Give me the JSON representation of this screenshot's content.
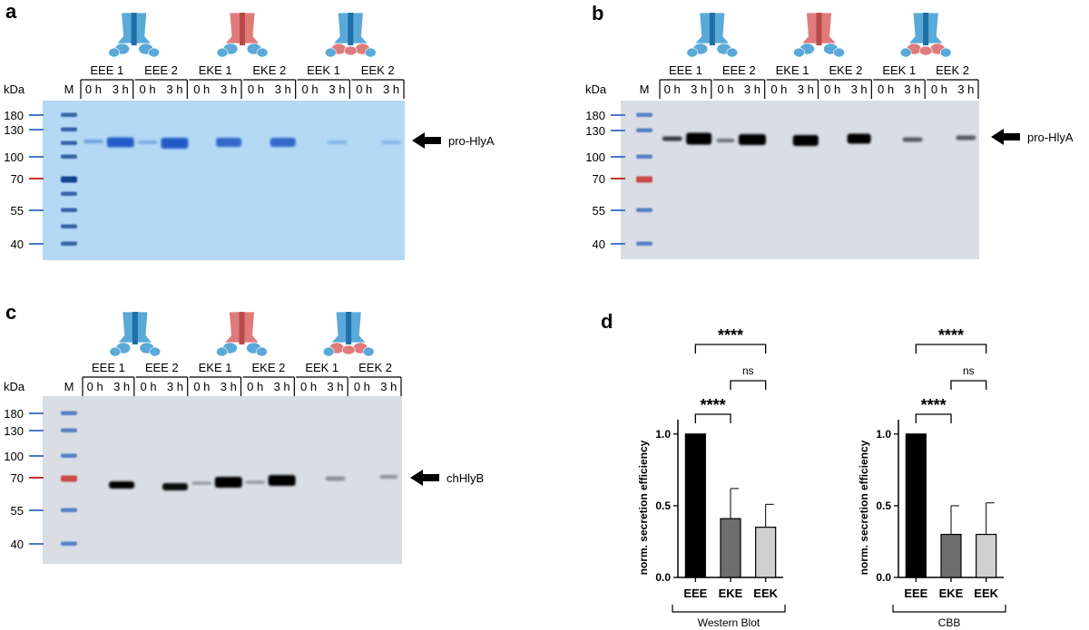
{
  "figure": {
    "panels": {
      "a": {
        "letter": "a",
        "kda_label": "kDa",
        "marker_label": "M",
        "samples": [
          "EEE 1",
          "EEE 2",
          "EKE 1",
          "EKE 2",
          "EEK 1",
          "EEK 2"
        ],
        "times": [
          "0 h",
          "3 h"
        ],
        "mw_ticks": [
          "180",
          "130",
          "100",
          "70",
          "55",
          "40"
        ],
        "band_label": "pro-HlyA",
        "gel_style": "coomassie"
      },
      "b": {
        "letter": "b",
        "kda_label": "kDa",
        "marker_label": "M",
        "samples": [
          "EEE 1",
          "EEE 2",
          "EKE 1",
          "EKE 2",
          "EEK 1",
          "EEK 2"
        ],
        "times": [
          "0 h",
          "3 h"
        ],
        "mw_ticks": [
          "180",
          "130",
          "100",
          "70",
          "55",
          "40"
        ],
        "band_label": "pro-HlyA",
        "gel_style": "western"
      },
      "c": {
        "letter": "c",
        "kda_label": "kDa",
        "marker_label": "M",
        "samples": [
          "EEE 1",
          "EEE 2",
          "EKE 1",
          "EKE 2",
          "EEK 1",
          "EEK 2"
        ],
        "times": [
          "0 h",
          "3 h"
        ],
        "mw_ticks": [
          "180",
          "130",
          "100",
          "70",
          "55",
          "40"
        ],
        "band_label": "chHlyB",
        "gel_style": "western"
      },
      "d": {
        "letter": "d"
      }
    },
    "icon_variants": [
      "EEE",
      "EKE",
      "EEK"
    ],
    "colors": {
      "blue": "#5aa9d8",
      "dark_blue": "#1f6fa8",
      "red": "#e07b7b",
      "dark_red": "#b94a4a",
      "marker_blue": "#4a78c8",
      "marker_red": "#c8322d",
      "coomassie": "#b3d9f5",
      "western": "#d9dde4"
    }
  },
  "chart_data": [
    {
      "type": "bar",
      "categories": [
        "EEE",
        "EKE",
        "EEK"
      ],
      "values": [
        1.0,
        0.41,
        0.35
      ],
      "errors": [
        0,
        0.21,
        0.16
      ],
      "ylabel": "norm. secretion efficiency",
      "group_label": "Western Blot",
      "ylim": [
        0,
        1.1
      ],
      "yticks": [
        "0.0",
        "0.5",
        "1.0"
      ],
      "bar_colors": [
        "#000000",
        "#6e6e6e",
        "#d0d0d0"
      ],
      "significance": [
        {
          "between": [
            "EEE",
            "EKE"
          ],
          "label": "****"
        },
        {
          "between": [
            "EKE",
            "EEK"
          ],
          "label": "ns"
        },
        {
          "between": [
            "EEE",
            "EEK"
          ],
          "label": "****"
        }
      ]
    },
    {
      "type": "bar",
      "categories": [
        "EEE",
        "EKE",
        "EEK"
      ],
      "values": [
        1.0,
        0.3,
        0.3
      ],
      "errors": [
        0,
        0.2,
        0.22
      ],
      "ylabel": "norm. secretion efficiency",
      "group_label": "CBB",
      "ylim": [
        0,
        1.1
      ],
      "yticks": [
        "0.0",
        "0.5",
        "1.0"
      ],
      "bar_colors": [
        "#000000",
        "#6e6e6e",
        "#d0d0d0"
      ],
      "significance": [
        {
          "between": [
            "EEE",
            "EKE"
          ],
          "label": "****"
        },
        {
          "between": [
            "EKE",
            "EEK"
          ],
          "label": "ns"
        },
        {
          "between": [
            "EEE",
            "EEK"
          ],
          "label": "****"
        }
      ]
    }
  ]
}
